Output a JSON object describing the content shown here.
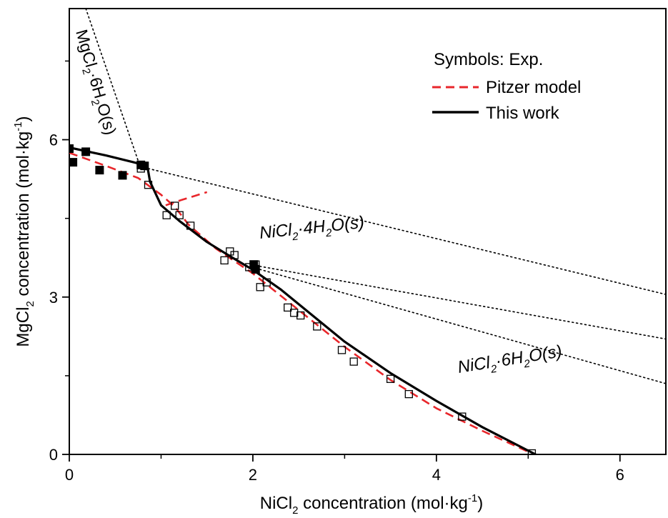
{
  "chart_data": {
    "type": "scatter",
    "xlabel": {
      "pre": "NiCl",
      "sub": "2",
      "post": " concentration (mol·kg",
      "sup": "-1",
      "end": ")"
    },
    "ylabel": {
      "pre": "MgCl",
      "sub": "2",
      "post": " concentration (mol·kg",
      "sup": "-1",
      "end": ")"
    },
    "xlim": [
      0,
      6.5
    ],
    "ylim": [
      0,
      8.5
    ],
    "x_ticks": [
      "0",
      "2",
      "4",
      "6"
    ],
    "y_ticks": [
      "0",
      "3",
      "6"
    ],
    "x_tick_values": [
      0,
      2,
      4,
      6
    ],
    "y_tick_values": [
      0,
      3,
      6
    ],
    "x_minor_ticks": [
      1,
      3,
      5
    ],
    "y_minor_ticks": [
      1.5,
      4.5,
      7.5
    ],
    "grid": false,
    "legend": {
      "position": "top-right",
      "title": "Symbols: Exp.",
      "entries": [
        {
          "label": "Pitzer model",
          "color": "#e8262b",
          "style": "dashed"
        },
        {
          "label": "This work",
          "color": "#000000",
          "style": "solid"
        }
      ]
    },
    "annotations": {
      "mgcl2_phase": {
        "pre": "MgCl",
        "s1": "2",
        "mid": "·6H",
        "s2": "2",
        "post": "O(s)"
      },
      "nicl2_4h2o": {
        "pre": "NiCl",
        "s1": "2",
        "mid": "·4H",
        "s2": "2",
        "post": "O(s)"
      },
      "nicl2_6h2o": {
        "pre": "NiCl",
        "s1": "2",
        "mid": "·6H",
        "s2": "2",
        "post": "O(s)"
      }
    },
    "series": [
      {
        "name": "MgCl2·6H2O(s) exp",
        "marker": "filled-square",
        "color": "#000000",
        "points": [
          [
            0.0,
            5.83
          ],
          [
            0.04,
            5.57
          ],
          [
            0.18,
            5.77
          ],
          [
            0.33,
            5.42
          ],
          [
            0.58,
            5.32
          ],
          [
            0.78,
            5.52
          ],
          [
            0.82,
            5.5
          ],
          [
            2.01,
            3.62
          ],
          [
            2.03,
            3.53
          ]
        ]
      },
      {
        "name": "NiCl2 hydrate exp",
        "marker": "open-square",
        "color": "#000000",
        "points": [
          [
            0.78,
            5.45
          ],
          [
            0.86,
            5.14
          ],
          [
            1.06,
            4.56
          ],
          [
            1.15,
            4.74
          ],
          [
            1.2,
            4.56
          ],
          [
            1.32,
            4.36
          ],
          [
            1.69,
            3.7
          ],
          [
            1.75,
            3.87
          ],
          [
            1.8,
            3.8
          ],
          [
            1.96,
            3.57
          ],
          [
            2.03,
            3.62
          ],
          [
            2.08,
            3.19
          ],
          [
            2.15,
            3.28
          ],
          [
            2.38,
            2.8
          ],
          [
            2.45,
            2.7
          ],
          [
            2.52,
            2.65
          ],
          [
            2.7,
            2.44
          ],
          [
            2.97,
            1.99
          ],
          [
            3.1,
            1.77
          ],
          [
            3.5,
            1.44
          ],
          [
            3.7,
            1.15
          ],
          [
            4.28,
            0.72
          ],
          [
            5.04,
            0.02
          ]
        ]
      },
      {
        "name": "Pitzer model",
        "style": "dashed",
        "color": "#e8262b",
        "points": [
          [
            0.0,
            5.75
          ],
          [
            0.4,
            5.5
          ],
          [
            0.75,
            5.27
          ],
          [
            1.0,
            4.95
          ],
          [
            1.15,
            4.72
          ],
          [
            1.3,
            4.38
          ],
          [
            1.6,
            3.92
          ],
          [
            2.0,
            3.45
          ],
          [
            2.5,
            2.75
          ],
          [
            3.0,
            2.05
          ],
          [
            3.5,
            1.42
          ],
          [
            4.0,
            0.88
          ],
          [
            4.5,
            0.45
          ],
          [
            5.0,
            0.05
          ]
        ]
      },
      {
        "name": "Pitzer model branch",
        "style": "dashed",
        "color": "#e8262b",
        "points": [
          [
            1.05,
            4.75
          ],
          [
            1.22,
            4.85
          ],
          [
            1.5,
            5.0
          ]
        ]
      },
      {
        "name": "This work",
        "style": "solid",
        "color": "#000000",
        "points": [
          [
            0.0,
            5.85
          ],
          [
            0.4,
            5.7
          ],
          [
            0.7,
            5.57
          ],
          [
            0.85,
            5.5
          ],
          [
            0.88,
            5.2
          ],
          [
            1.0,
            4.75
          ],
          [
            1.2,
            4.45
          ],
          [
            1.5,
            4.05
          ],
          [
            1.75,
            3.78
          ],
          [
            2.0,
            3.52
          ],
          [
            2.3,
            3.15
          ],
          [
            2.6,
            2.72
          ],
          [
            3.0,
            2.15
          ],
          [
            3.5,
            1.55
          ],
          [
            4.0,
            1.02
          ],
          [
            4.5,
            0.52
          ],
          [
            5.08,
            0.0
          ]
        ]
      },
      {
        "name": "MgCl2·6H2O extension",
        "style": "dotted",
        "color": "#000000",
        "points": [
          [
            0.18,
            8.5
          ],
          [
            0.76,
            5.55
          ]
        ]
      },
      {
        "name": "NiCl2·4H2O extension",
        "style": "dotted",
        "color": "#000000",
        "points": [
          [
            0.86,
            5.45
          ],
          [
            6.5,
            3.05
          ]
        ]
      },
      {
        "name": "NiCl2·6H2O extension 1",
        "style": "dotted",
        "color": "#000000",
        "points": [
          [
            2.03,
            3.6
          ],
          [
            6.5,
            2.2
          ]
        ]
      },
      {
        "name": "NiCl2·6H2O extension 2",
        "style": "dotted",
        "color": "#000000",
        "points": [
          [
            2.03,
            3.55
          ],
          [
            6.5,
            1.35
          ]
        ]
      }
    ]
  }
}
